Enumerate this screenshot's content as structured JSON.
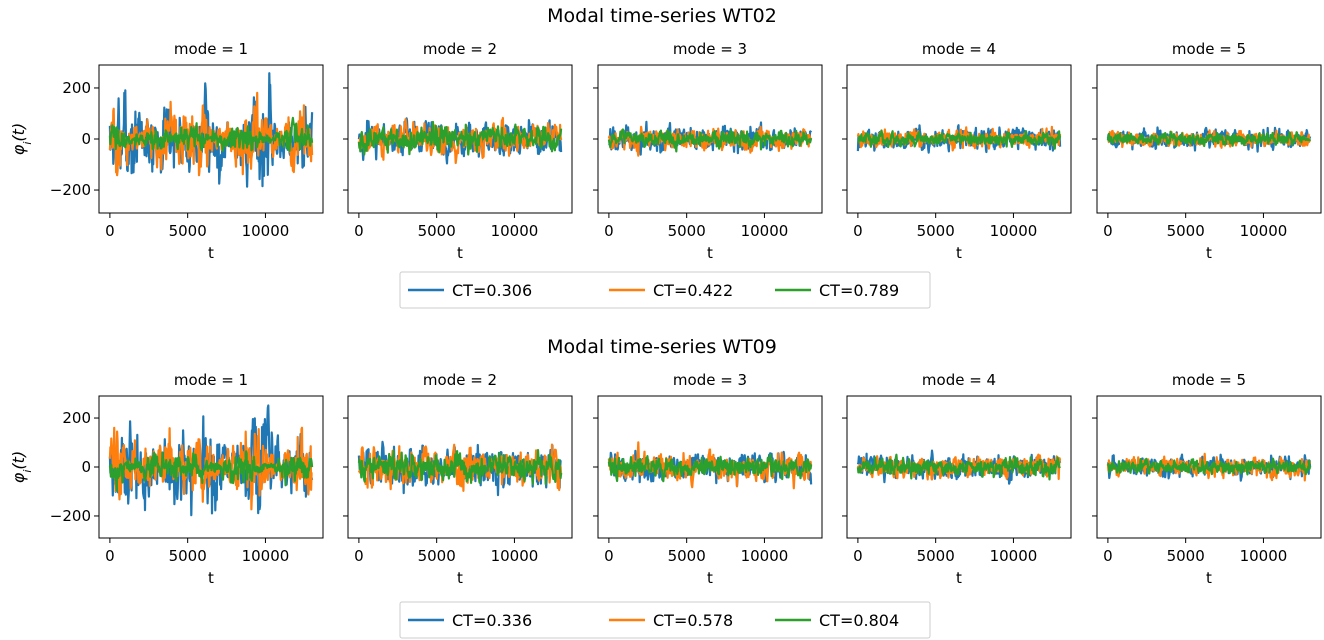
{
  "figure": {
    "ylabel": "φ_i(t)",
    "xlabel": "t",
    "ylim": [
      -290,
      290
    ],
    "yticks": [
      -200,
      0,
      200
    ],
    "xlim": [
      -700,
      13700
    ],
    "xticks": [
      0,
      5000,
      10000
    ]
  },
  "chart_data": [
    {
      "type": "line",
      "title": "Modal time-series WT02",
      "xlabel": "t",
      "ylabel": "φ_i(t)",
      "x_range": [
        0,
        13000
      ],
      "ylim": [
        -290,
        290
      ],
      "series": [
        {
          "name": "CT=0.306",
          "color": "#1f77b4"
        },
        {
          "name": "CT=0.422",
          "color": "#ff7f0e"
        },
        {
          "name": "CT=0.789",
          "color": "#2ca02c"
        }
      ],
      "panels": [
        {
          "title": "mode = 1",
          "amplitudes": [
            110,
            80,
            35
          ],
          "bursty": true
        },
        {
          "title": "mode = 2",
          "amplitudes": [
            55,
            50,
            40
          ],
          "bursty": false
        },
        {
          "title": "mode = 3",
          "amplitudes": [
            40,
            35,
            28
          ],
          "bursty": false
        },
        {
          "title": "mode = 4",
          "amplitudes": [
            38,
            30,
            22
          ],
          "bursty": false
        },
        {
          "title": "mode = 5",
          "amplitudes": [
            30,
            25,
            20
          ],
          "bursty": false
        }
      ]
    },
    {
      "type": "line",
      "title": "Modal time-series WT09",
      "xlabel": "t",
      "ylabel": "φ_i(t)",
      "x_range": [
        0,
        13000
      ],
      "ylim": [
        -290,
        290
      ],
      "series": [
        {
          "name": "CT=0.336",
          "color": "#1f77b4"
        },
        {
          "name": "CT=0.578",
          "color": "#ff7f0e"
        },
        {
          "name": "CT=0.804",
          "color": "#2ca02c"
        }
      ],
      "panels": [
        {
          "title": "mode = 1",
          "amplitudes": [
            120,
            90,
            40
          ],
          "bursty": true
        },
        {
          "title": "mode = 2",
          "amplitudes": [
            70,
            65,
            45
          ],
          "bursty": false
        },
        {
          "title": "mode = 3",
          "amplitudes": [
            48,
            45,
            35
          ],
          "bursty": false
        },
        {
          "title": "mode = 4",
          "amplitudes": [
            42,
            38,
            28
          ],
          "bursty": false
        },
        {
          "title": "mode = 5",
          "amplitudes": [
            35,
            32,
            25
          ],
          "bursty": false
        }
      ]
    }
  ]
}
